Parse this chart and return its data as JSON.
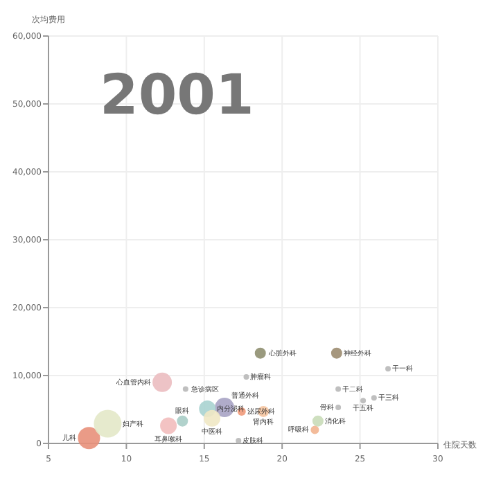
{
  "chart_data": {
    "type": "bubble",
    "title": "2001",
    "xlabel": "住院天数",
    "ylabel": "次均费用",
    "xlim": [
      5,
      30
    ],
    "xticks": [
      5,
      10,
      15,
      20,
      25,
      30
    ],
    "ylim": [
      0,
      60000
    ],
    "yticks": [
      {
        "value": 0,
        "label": "0"
      },
      {
        "value": 10000,
        "label": "10,000"
      },
      {
        "value": 20000,
        "label": "20,000"
      },
      {
        "value": 30000,
        "label": "30,000"
      },
      {
        "value": 40000,
        "label": "40,000"
      },
      {
        "value": 50000,
        "label": "50,000"
      },
      {
        "value": 60000,
        "label": "60,000"
      }
    ],
    "grid": true,
    "series": [
      {
        "name": "儿科",
        "x": [
          7.6
        ],
        "values": [
          800
        ],
        "sizes": [
          0.64
        ],
        "color": "#e8907a"
      },
      {
        "name": "妇产科",
        "x": [
          8.8
        ],
        "values": [
          2900
        ],
        "sizes": [
          1
        ],
        "color": "#e3e8c8"
      },
      {
        "name": "心血管内科",
        "x": [
          12.3
        ],
        "values": [
          9000
        ],
        "sizes": [
          0.49
        ],
        "color": "#ebbcc0"
      },
      {
        "name": "急诊病区",
        "x": [
          13.8
        ],
        "values": [
          8000
        ],
        "sizes": [
          0.04
        ],
        "color": "#b8b8b8"
      },
      {
        "name": "肿瘤科",
        "x": [
          17.7
        ],
        "values": [
          9800
        ],
        "sizes": [
          0.04
        ],
        "color": "#b8b8b8"
      },
      {
        "name": "心脏外科",
        "x": [
          18.6
        ],
        "values": [
          13300
        ],
        "sizes": [
          0.16
        ],
        "color": "#8f8f70"
      },
      {
        "name": "神经外科",
        "x": [
          23.5
        ],
        "values": [
          13300
        ],
        "sizes": [
          0.16
        ],
        "color": "#9c8c70"
      },
      {
        "name": "干一科",
        "x": [
          26.8
        ],
        "values": [
          11000
        ],
        "sizes": [
          0.04
        ],
        "color": "#b8b8b8"
      },
      {
        "name": "干二科",
        "x": [
          23.6
        ],
        "values": [
          8000
        ],
        "sizes": [
          0.04
        ],
        "color": "#b8b8b8"
      },
      {
        "name": "干三科",
        "x": [
          25.9
        ],
        "values": [
          6700
        ],
        "sizes": [
          0.04
        ],
        "color": "#b8b8b8"
      },
      {
        "name": "干五科",
        "x": [
          25.2
        ],
        "values": [
          6300
        ],
        "sizes": [
          0.04
        ],
        "color": "#b8b8b8"
      },
      {
        "name": "骨科",
        "x": [
          23.6
        ],
        "values": [
          5300
        ],
        "sizes": [
          0.04
        ],
        "color": "#b8b8b8"
      },
      {
        "name": "消化科",
        "x": [
          22.3
        ],
        "values": [
          3300
        ],
        "sizes": [
          0.16
        ],
        "color": "#c9dcb8"
      },
      {
        "name": "呼吸科",
        "x": [
          22.1
        ],
        "values": [
          2000
        ],
        "sizes": [
          0.09
        ],
        "color": "#f2b48f"
      },
      {
        "name": "眼科",
        "x": [
          13.6
        ],
        "values": [
          3300
        ],
        "sizes": [
          0.16
        ],
        "color": "#a9cdc6"
      },
      {
        "name": "耳鼻喉科",
        "x": [
          12.7
        ],
        "values": [
          2600
        ],
        "sizes": [
          0.36
        ],
        "color": "#f2bcbc"
      },
      {
        "name": "普通外科",
        "x": [
          16.3
        ],
        "values": [
          5300
        ],
        "sizes": [
          0.49
        ],
        "color": "#a7a3c4"
      },
      {
        "name": "内分泌科",
        "x": [
          15.2
        ],
        "values": [
          5100
        ],
        "sizes": [
          0.36
        ],
        "color": "#a9d3d0"
      },
      {
        "name": "中医科",
        "x": [
          15.5
        ],
        "values": [
          3700
        ],
        "sizes": [
          0.36
        ],
        "color": "#efe8c4"
      },
      {
        "name": "泌尿外科",
        "x": [
          17.4
        ],
        "values": [
          4700
        ],
        "sizes": [
          0.09
        ],
        "color": "#f09a7a"
      },
      {
        "name": "肾内科",
        "x": [
          18.8
        ],
        "values": [
          4700
        ],
        "sizes": [
          0.16
        ],
        "color": "#f5c4a0"
      },
      {
        "name": "皮肤科",
        "x": [
          17.2
        ],
        "values": [
          400
        ],
        "sizes": [
          0.04
        ],
        "color": "#b8b8b8"
      }
    ]
  }
}
